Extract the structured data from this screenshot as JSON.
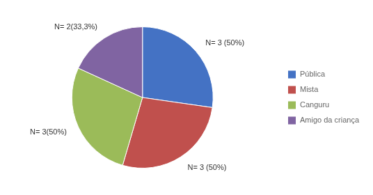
{
  "chart_data": {
    "type": "pie",
    "categories": [
      "Pública",
      "Mista",
      "Canguru",
      "Amigo da criança"
    ],
    "values": [
      3,
      3,
      3,
      2
    ],
    "value_labels": [
      "N= 3 (50%)",
      "N= 3 (50%)",
      "N= 3(50%)",
      "N= 2(33,3%)"
    ],
    "colors": [
      "#4472C4",
      "#C0504D",
      "#9BBB59",
      "#8064A2"
    ],
    "data_labels": true,
    "legend": "right"
  }
}
